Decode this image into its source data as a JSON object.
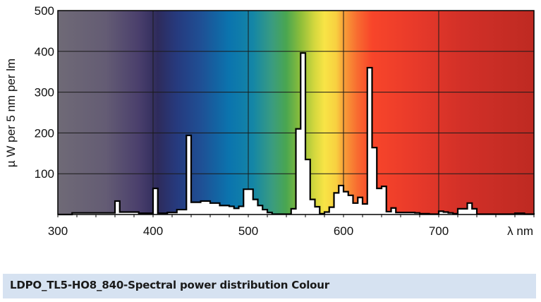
{
  "chart_data": {
    "type": "bar",
    "subtype": "step-histogram spectral power distribution",
    "ylabel": "µ W per 5 nm per lm",
    "xlabel": "λ nm",
    "xlim": [
      300,
      800
    ],
    "ylim": [
      0,
      500
    ],
    "x_ticks": [
      "300",
      "400",
      "500",
      "600",
      "700"
    ],
    "y_ticks": [
      "100",
      "200",
      "300",
      "400",
      "500"
    ],
    "grid": true,
    "background": "visible spectrum colour gradient",
    "bin_width_nm": 5,
    "x": [
      300,
      305,
      310,
      315,
      320,
      325,
      330,
      335,
      340,
      345,
      350,
      355,
      360,
      365,
      370,
      375,
      380,
      385,
      390,
      395,
      400,
      405,
      410,
      415,
      420,
      425,
      430,
      435,
      440,
      445,
      450,
      455,
      460,
      465,
      470,
      475,
      480,
      485,
      490,
      495,
      500,
      505,
      510,
      515,
      520,
      525,
      530,
      535,
      540,
      545,
      550,
      555,
      560,
      565,
      570,
      575,
      580,
      585,
      590,
      595,
      600,
      605,
      610,
      615,
      620,
      625,
      630,
      635,
      640,
      645,
      650,
      655,
      660,
      665,
      670,
      675,
      680,
      685,
      690,
      695,
      700,
      705,
      710,
      715,
      720,
      725,
      730,
      735,
      740,
      745,
      750,
      755,
      760,
      765,
      770,
      775,
      780,
      785,
      790,
      795
    ],
    "values": [
      0,
      0,
      0,
      4,
      4,
      4,
      4,
      4,
      4,
      4,
      4,
      4,
      33,
      6,
      6,
      6,
      6,
      3,
      3,
      3,
      64,
      3,
      3,
      5,
      5,
      12,
      12,
      194,
      30,
      30,
      33,
      33,
      28,
      28,
      22,
      22,
      20,
      15,
      20,
      62,
      62,
      37,
      22,
      12,
      5,
      1,
      1,
      1,
      1,
      14,
      210,
      396,
      135,
      37,
      19,
      2,
      6,
      18,
      53,
      71,
      56,
      47,
      28,
      42,
      26,
      360,
      164,
      64,
      69,
      7,
      16,
      5,
      5,
      5,
      5,
      4,
      2,
      2,
      1,
      1,
      8,
      6,
      4,
      2,
      14,
      14,
      28,
      14,
      1,
      1,
      1,
      1,
      1,
      1,
      1,
      1,
      3,
      3,
      1,
      1
    ],
    "colors": {
      "bar_fill": "#ffffff",
      "outline": "#000000",
      "grid": "#1a1a1a"
    }
  },
  "footer": {
    "title": "LDPO_TL5-HO8_840-Spectral power distribution Colour",
    "background": "#d6e2f1"
  }
}
